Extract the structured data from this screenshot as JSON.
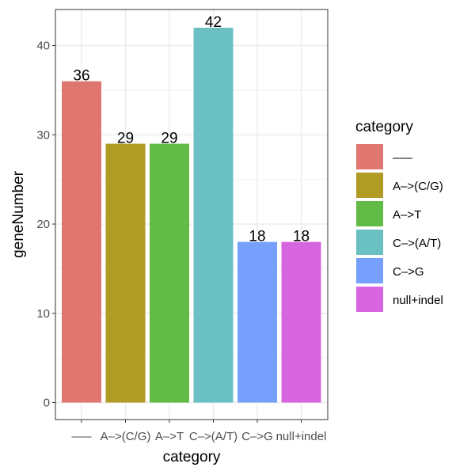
{
  "chart_data": {
    "type": "bar",
    "categories": [
      "–––",
      "A–>(C/G)",
      "A–>T",
      "C–>(A/T)",
      "C–>G",
      "null+indel"
    ],
    "values": [
      36,
      29,
      29,
      42,
      18,
      18
    ],
    "colors": [
      "#e07670",
      "#b09b25",
      "#63bb47",
      "#6bc0c4",
      "#76a0fb",
      "#d865e0"
    ],
    "xlabel": "category",
    "ylabel": "geneNumber",
    "ylim": [
      0,
      43.5
    ],
    "yticks": [
      0,
      10,
      20,
      30,
      40
    ],
    "grid": true,
    "legend": {
      "title": "category",
      "position": "right",
      "entries": [
        "–––",
        "A–>(C/G)",
        "A–>T",
        "C–>(A/T)",
        "C–>G",
        "null+indel"
      ]
    }
  }
}
